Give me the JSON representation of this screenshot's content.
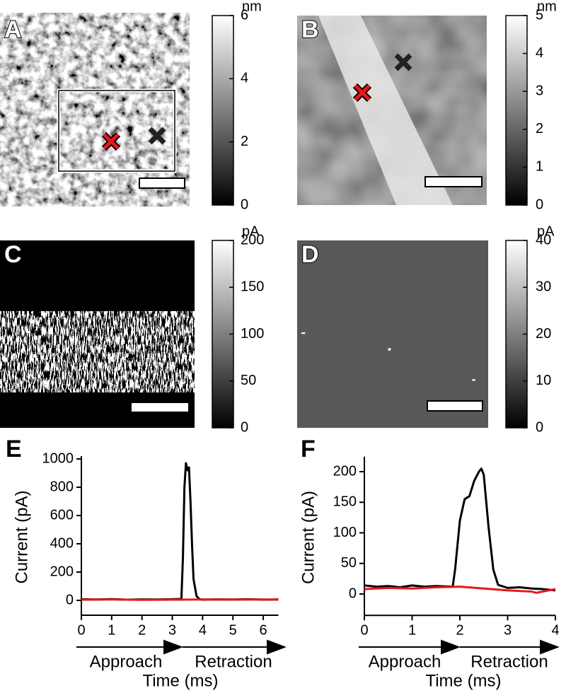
{
  "chart_data": [
    {
      "type": "image",
      "label": "A",
      "unit": "nm",
      "clim": [
        0,
        6
      ],
      "cticks": [
        0,
        2,
        4,
        6
      ]
    },
    {
      "type": "image",
      "label": "B",
      "unit": "nm",
      "clim": [
        0,
        5
      ],
      "cticks": [
        0,
        1,
        2,
        3,
        4,
        5
      ]
    },
    {
      "type": "image",
      "label": "C",
      "unit": "pA",
      "clim": [
        0,
        200
      ],
      "cticks": [
        0,
        50,
        100,
        150,
        200
      ]
    },
    {
      "type": "image",
      "label": "D",
      "unit": "pA",
      "clim": [
        0,
        40
      ],
      "cticks": [
        0,
        10,
        20,
        30,
        40
      ]
    },
    {
      "type": "line",
      "label": "E",
      "x_label": "Time (ms)",
      "y_label": "Current (pA)",
      "approach_label": "Approach",
      "retraction_label": "Retraction",
      "xlim": [
        0,
        6.5
      ],
      "xticks": [
        0,
        1,
        2,
        3,
        4,
        5,
        6
      ],
      "ylim": [
        -105,
        1000
      ],
      "yticks": [
        0,
        200,
        400,
        600,
        800,
        1000
      ],
      "series": [
        {
          "color": "#000000",
          "x": [
            0,
            0.5,
            1,
            1.5,
            2,
            2.5,
            3,
            3.3,
            3.35,
            3.4,
            3.45,
            3.5,
            3.55,
            3.6,
            3.65,
            3.7,
            3.8,
            3.9,
            4,
            4.5,
            5,
            5.5,
            6,
            6.5
          ],
          "values": [
            8,
            6,
            9,
            5,
            7,
            6,
            8,
            10,
            300,
            800,
            970,
            920,
            940,
            700,
            400,
            150,
            30,
            8,
            5,
            7,
            6,
            8,
            5,
            7
          ]
        },
        {
          "color": "#e8161b",
          "x": [
            0,
            1,
            2,
            3,
            4,
            5,
            6,
            6.5
          ],
          "values": [
            5,
            6,
            4,
            5,
            6,
            5,
            6,
            5
          ]
        }
      ]
    },
    {
      "type": "line",
      "label": "F",
      "x_label": "Time (ms)",
      "y_label": "Current (pA)",
      "approach_label": "Approach",
      "retraction_label": "Retraction",
      "xlim": [
        0,
        4
      ],
      "xticks": [
        0,
        1,
        2,
        3,
        4
      ],
      "ylim": [
        -35,
        220
      ],
      "yticks": [
        0,
        50,
        100,
        150,
        200
      ],
      "series": [
        {
          "color": "#000000",
          "x": [
            0,
            0.25,
            0.5,
            0.75,
            1,
            1.25,
            1.5,
            1.85,
            1.9,
            2.0,
            2.1,
            2.2,
            2.3,
            2.4,
            2.45,
            2.5,
            2.6,
            2.7,
            2.8,
            3,
            3.25,
            3.5,
            3.75,
            4
          ],
          "values": [
            14,
            12,
            13,
            11,
            14,
            12,
            13,
            12,
            40,
            120,
            155,
            160,
            185,
            200,
            205,
            195,
            110,
            40,
            15,
            10,
            11,
            9,
            8,
            6
          ]
        },
        {
          "color": "#e8161b",
          "x": [
            0,
            0.5,
            1,
            1.5,
            2,
            2.5,
            3,
            3.5,
            3.6,
            4
          ],
          "values": [
            8,
            10,
            9,
            11,
            12,
            9,
            6,
            4,
            2,
            8
          ]
        }
      ]
    }
  ]
}
